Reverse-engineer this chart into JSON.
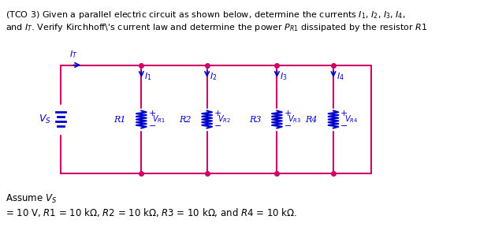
{
  "bg_color": "#ffffff",
  "title_line1": "(TCO 3) Given a parallel electric circuit as shown below, determine the currents ̉1, ̉2, ̉3, ̉4,",
  "title_line2": "and Ιᴴ. Verify Kirchhoff’s current law and determine the power Pᴿ₁ dissipated by the resistor R1",
  "footer_line1": "Assume Vₛ",
  "footer_line2": "= 10 V, R1 = 10 kΩ, R2 = 10 kΩ, R3 = 10 kΩ, and R4 = 10 kΩ.",
  "circuit_color": "#cc0066",
  "wire_color_horiz": "#cc0066",
  "wire_color_vert": "#cc0066",
  "resistor_color": "#0000cc",
  "label_color": "#0000cc",
  "vs_color": "#0000cc",
  "it_color": "#0000cc",
  "fig_width": 6.23,
  "fig_height": 3.07
}
